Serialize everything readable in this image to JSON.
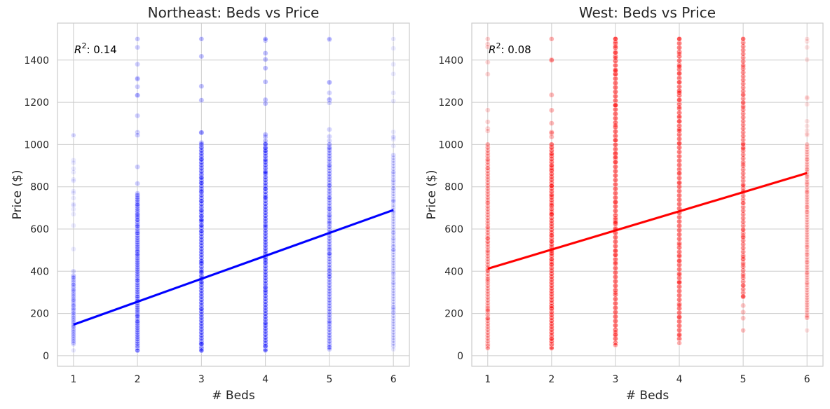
{
  "chart_data": [
    {
      "type": "scatter",
      "title": "Northeast: Beds vs Price",
      "xlabel": "# Beds",
      "ylabel": "Price ($)",
      "xlim": [
        0.75,
        6.25
      ],
      "ylim": [
        -50,
        1575
      ],
      "xticks": [
        1,
        2,
        3,
        4,
        5,
        6
      ],
      "yticks": [
        0,
        200,
        400,
        600,
        800,
        1000,
        1200,
        1400
      ],
      "grid": true,
      "color": "#0000ff",
      "annotation": {
        "prefix": "R",
        "sup": "2",
        "suffix": ": 0.14"
      },
      "points": [
        {
          "beds": 1,
          "min": 25,
          "max": 1045,
          "dense_min": 55,
          "dense_max": 380,
          "opacity": 0.15
        },
        {
          "beds": 2,
          "min": 25,
          "max": 1500,
          "dense_min": 25,
          "dense_max": 760,
          "opacity": 0.35
        },
        {
          "beds": 3,
          "min": 25,
          "max": 1500,
          "dense_min": 25,
          "dense_max": 1000,
          "opacity": 0.45
        },
        {
          "beds": 4,
          "min": 25,
          "max": 1500,
          "dense_min": 30,
          "dense_max": 1000,
          "opacity": 0.45
        },
        {
          "beds": 5,
          "min": 30,
          "max": 1500,
          "dense_min": 40,
          "dense_max": 1000,
          "opacity": 0.3
        },
        {
          "beds": 6,
          "min": 30,
          "max": 1500,
          "dense_min": 45,
          "dense_max": 950,
          "opacity": 0.15
        }
      ],
      "regression": {
        "x": [
          1,
          6
        ],
        "y": [
          147,
          690
        ]
      }
    },
    {
      "type": "scatter",
      "title": "West: Beds vs Price",
      "xlabel": "# Beds",
      "ylabel": "Price ($)",
      "xlim": [
        0.75,
        6.25
      ],
      "ylim": [
        -50,
        1575
      ],
      "xticks": [
        1,
        2,
        3,
        4,
        5,
        6
      ],
      "yticks": [
        0,
        200,
        400,
        600,
        800,
        1000,
        1200,
        1400
      ],
      "grid": true,
      "color": "#ff0000",
      "annotation": {
        "prefix": "R",
        "sup": "2",
        "suffix": ": 0.08"
      },
      "points": [
        {
          "beds": 1,
          "min": 35,
          "max": 1500,
          "dense_min": 40,
          "dense_max": 1000,
          "opacity": 0.3
        },
        {
          "beds": 2,
          "min": 35,
          "max": 1500,
          "dense_min": 40,
          "dense_max": 1000,
          "opacity": 0.5
        },
        {
          "beds": 3,
          "min": 50,
          "max": 1500,
          "dense_min": 60,
          "dense_max": 1500,
          "opacity": 0.55
        },
        {
          "beds": 4,
          "min": 60,
          "max": 1500,
          "dense_min": 80,
          "dense_max": 1500,
          "opacity": 0.5
        },
        {
          "beds": 5,
          "min": 120,
          "max": 1500,
          "dense_min": 280,
          "dense_max": 1500,
          "opacity": 0.4
        },
        {
          "beds": 6,
          "min": 120,
          "max": 1500,
          "dense_min": 180,
          "dense_max": 1000,
          "opacity": 0.2
        }
      ],
      "regression": {
        "x": [
          1,
          6
        ],
        "y": [
          412,
          865
        ]
      }
    }
  ]
}
